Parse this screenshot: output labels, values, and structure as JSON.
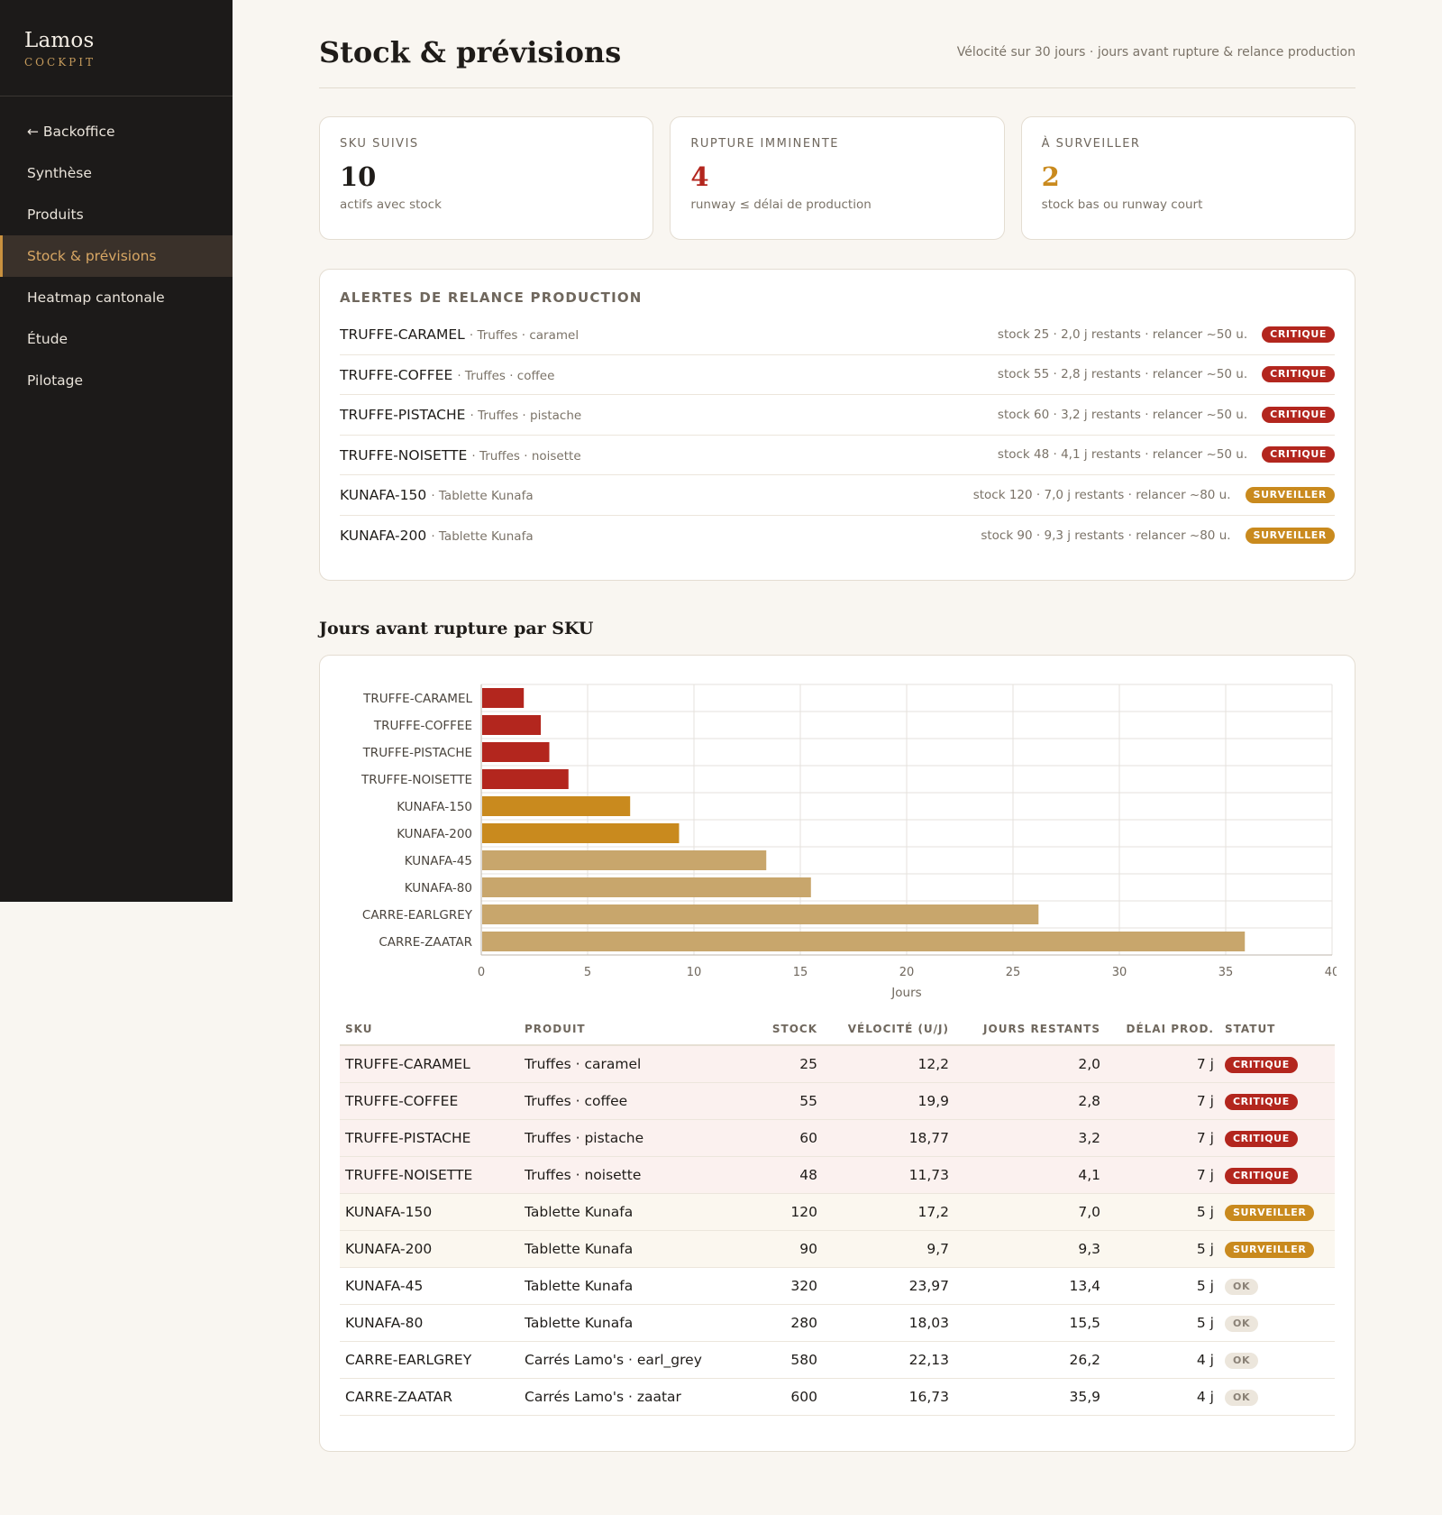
{
  "brand": {
    "name": "Lamos",
    "sub": "COCKPIT"
  },
  "nav": [
    {
      "label": "← Backoffice",
      "active": false
    },
    {
      "label": "Synthèse",
      "active": false
    },
    {
      "label": "Produits",
      "active": false
    },
    {
      "label": "Stock & prévisions",
      "active": true
    },
    {
      "label": "Heatmap cantonale",
      "active": false
    },
    {
      "label": "Étude",
      "active": false
    },
    {
      "label": "Pilotage",
      "active": false
    }
  ],
  "header": {
    "title": "Stock & prévisions",
    "subtitle": "Vélocité sur 30 jours · jours avant rupture & relance production"
  },
  "kpis": [
    {
      "label": "SKU SUIVIS",
      "value": "10",
      "note": "actifs avec stock",
      "color": "#1f1c19"
    },
    {
      "label": "RUPTURE IMMINENTE",
      "value": "4",
      "note": "runway ≤ délai de production",
      "color": "#b3261e"
    },
    {
      "label": "À SURVEILLER",
      "value": "2",
      "note": "stock bas ou runway court",
      "color": "#c98a1e"
    }
  ],
  "alerts": {
    "title": "ALERTES DE RELANCE PRODUCTION",
    "items": [
      {
        "sku": "TRUFFE-CARAMEL",
        "product": "· Truffes · caramel",
        "info": "stock 25 · 2,0 j restants · relancer ~50 u.",
        "status": "CRITIQUE",
        "level": "crit"
      },
      {
        "sku": "TRUFFE-COFFEE",
        "product": "· Truffes · coffee",
        "info": "stock 55 · 2,8 j restants · relancer ~50 u.",
        "status": "CRITIQUE",
        "level": "crit"
      },
      {
        "sku": "TRUFFE-PISTACHE",
        "product": "· Truffes · pistache",
        "info": "stock 60 · 3,2 j restants · relancer ~50 u.",
        "status": "CRITIQUE",
        "level": "crit"
      },
      {
        "sku": "TRUFFE-NOISETTE",
        "product": "· Truffes · noisette",
        "info": "stock 48 · 4,1 j restants · relancer ~50 u.",
        "status": "CRITIQUE",
        "level": "crit"
      },
      {
        "sku": "KUNAFA-150",
        "product": "· Tablette Kunafa",
        "info": "stock 120 · 7,0 j restants · relancer ~80 u.",
        "status": "SURVEILLER",
        "level": "watch"
      },
      {
        "sku": "KUNAFA-200",
        "product": "· Tablette Kunafa",
        "info": "stock 90 · 9,3 j restants · relancer ~80 u.",
        "status": "SURVEILLER",
        "level": "watch"
      }
    ]
  },
  "chart_section_title": "Jours avant rupture par SKU",
  "chart_data": {
    "type": "bar",
    "orientation": "horizontal",
    "categories": [
      "TRUFFE-CARAMEL",
      "TRUFFE-COFFEE",
      "TRUFFE-PISTACHE",
      "TRUFFE-NOISETTE",
      "KUNAFA-150",
      "KUNAFA-200",
      "KUNAFA-45",
      "KUNAFA-80",
      "CARRE-EARLGREY",
      "CARRE-ZAATAR"
    ],
    "values": [
      2.0,
      2.8,
      3.2,
      4.1,
      7.0,
      9.3,
      13.4,
      15.5,
      26.2,
      35.9
    ],
    "bar_colors": [
      "#b3261e",
      "#b3261e",
      "#b3261e",
      "#b3261e",
      "#c98a1e",
      "#c98a1e",
      "#c8a66c",
      "#c8a66c",
      "#c8a66c",
      "#c8a66c"
    ],
    "xlabel": "Jours",
    "ylabel": "",
    "xlim": [
      0,
      40
    ],
    "xticks": [
      0,
      5,
      10,
      15,
      20,
      25,
      30,
      35,
      40
    ],
    "grid": true
  },
  "table": {
    "headers": [
      "SKU",
      "PRODUIT",
      "STOCK",
      "VÉLOCITÉ (U/J)",
      "JOURS RESTANTS",
      "DÉLAI PROD.",
      "STATUT"
    ],
    "rows": [
      {
        "sku": "TRUFFE-CARAMEL",
        "product": "Truffes · caramel",
        "stock": "25",
        "velocity": "12,2",
        "days": "2,0",
        "lead": "7 j",
        "status": "CRITIQUE",
        "level": "crit"
      },
      {
        "sku": "TRUFFE-COFFEE",
        "product": "Truffes · coffee",
        "stock": "55",
        "velocity": "19,9",
        "days": "2,8",
        "lead": "7 j",
        "status": "CRITIQUE",
        "level": "crit"
      },
      {
        "sku": "TRUFFE-PISTACHE",
        "product": "Truffes · pistache",
        "stock": "60",
        "velocity": "18,77",
        "days": "3,2",
        "lead": "7 j",
        "status": "CRITIQUE",
        "level": "crit"
      },
      {
        "sku": "TRUFFE-NOISETTE",
        "product": "Truffes · noisette",
        "stock": "48",
        "velocity": "11,73",
        "days": "4,1",
        "lead": "7 j",
        "status": "CRITIQUE",
        "level": "crit"
      },
      {
        "sku": "KUNAFA-150",
        "product": "Tablette Kunafa",
        "stock": "120",
        "velocity": "17,2",
        "days": "7,0",
        "lead": "5 j",
        "status": "SURVEILLER",
        "level": "watch"
      },
      {
        "sku": "KUNAFA-200",
        "product": "Tablette Kunafa",
        "stock": "90",
        "velocity": "9,7",
        "days": "9,3",
        "lead": "5 j",
        "status": "SURVEILLER",
        "level": "watch"
      },
      {
        "sku": "KUNAFA-45",
        "product": "Tablette Kunafa",
        "stock": "320",
        "velocity": "23,97",
        "days": "13,4",
        "lead": "5 j",
        "status": "OK",
        "level": "ok"
      },
      {
        "sku": "KUNAFA-80",
        "product": "Tablette Kunafa",
        "stock": "280",
        "velocity": "18,03",
        "days": "15,5",
        "lead": "5 j",
        "status": "OK",
        "level": "ok"
      },
      {
        "sku": "CARRE-EARLGREY",
        "product": "Carrés Lamo's · earl_grey",
        "stock": "580",
        "velocity": "22,13",
        "days": "26,2",
        "lead": "4 j",
        "status": "OK",
        "level": "ok"
      },
      {
        "sku": "CARRE-ZAATAR",
        "product": "Carrés Lamo's · zaatar",
        "stock": "600",
        "velocity": "16,73",
        "days": "35,9",
        "lead": "4 j",
        "status": "OK",
        "level": "ok"
      }
    ]
  }
}
